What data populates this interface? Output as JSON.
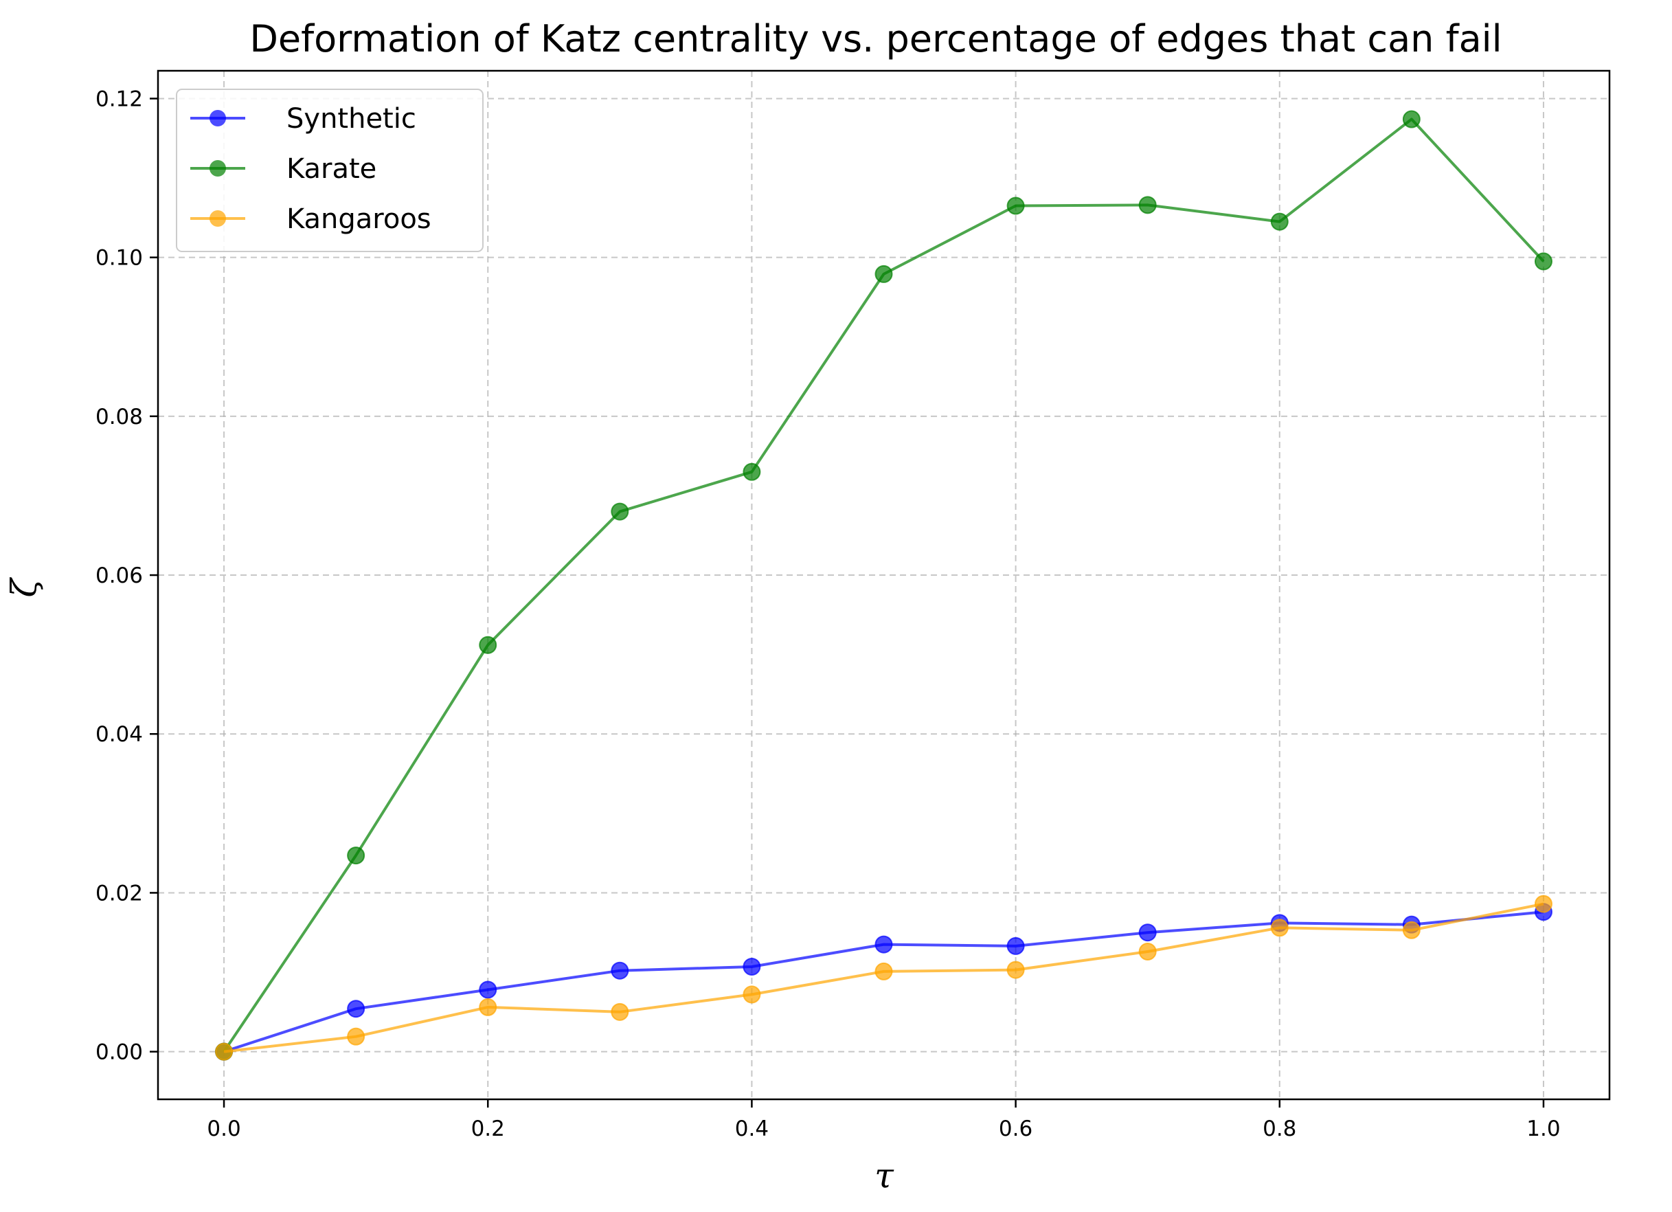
{
  "chart_data": {
    "type": "line",
    "title": "Deformation of Katz centrality vs. percentage of edges that can fail",
    "xlabel": "τ",
    "ylabel": "ζ",
    "xlim": [
      -0.05,
      1.05
    ],
    "ylim": [
      -0.006,
      0.1235
    ],
    "xticks": [
      0.0,
      0.2,
      0.4,
      0.6,
      0.8,
      1.0
    ],
    "xtick_labels": [
      "0.0",
      "0.2",
      "0.4",
      "0.6",
      "0.8",
      "1.0"
    ],
    "yticks": [
      0.0,
      0.02,
      0.04,
      0.06,
      0.08,
      0.1,
      0.12
    ],
    "ytick_labels": [
      "0.00",
      "0.02",
      "0.04",
      "0.06",
      "0.08",
      "0.10",
      "0.12"
    ],
    "grid": true,
    "legend_position": "top-left",
    "x": [
      0.0,
      0.1,
      0.2,
      0.3,
      0.4,
      0.5,
      0.6,
      0.7,
      0.8,
      0.9,
      1.0
    ],
    "series": [
      {
        "name": "Synthetic",
        "color": "#0000ff",
        "values": [
          0.0,
          0.0054,
          0.0078,
          0.0102,
          0.0107,
          0.0135,
          0.0133,
          0.015,
          0.0162,
          0.016,
          0.0176
        ]
      },
      {
        "name": "Karate",
        "color": "#008000",
        "values": [
          0.0,
          0.0247,
          0.0512,
          0.068,
          0.073,
          0.0979,
          0.1065,
          0.1066,
          0.1045,
          0.1174,
          0.0995
        ]
      },
      {
        "name": "Kangaroos",
        "color": "#ffa500",
        "values": [
          0.0,
          0.0019,
          0.0056,
          0.005,
          0.0072,
          0.0101,
          0.0103,
          0.0126,
          0.0156,
          0.0153,
          0.0186
        ]
      }
    ]
  }
}
